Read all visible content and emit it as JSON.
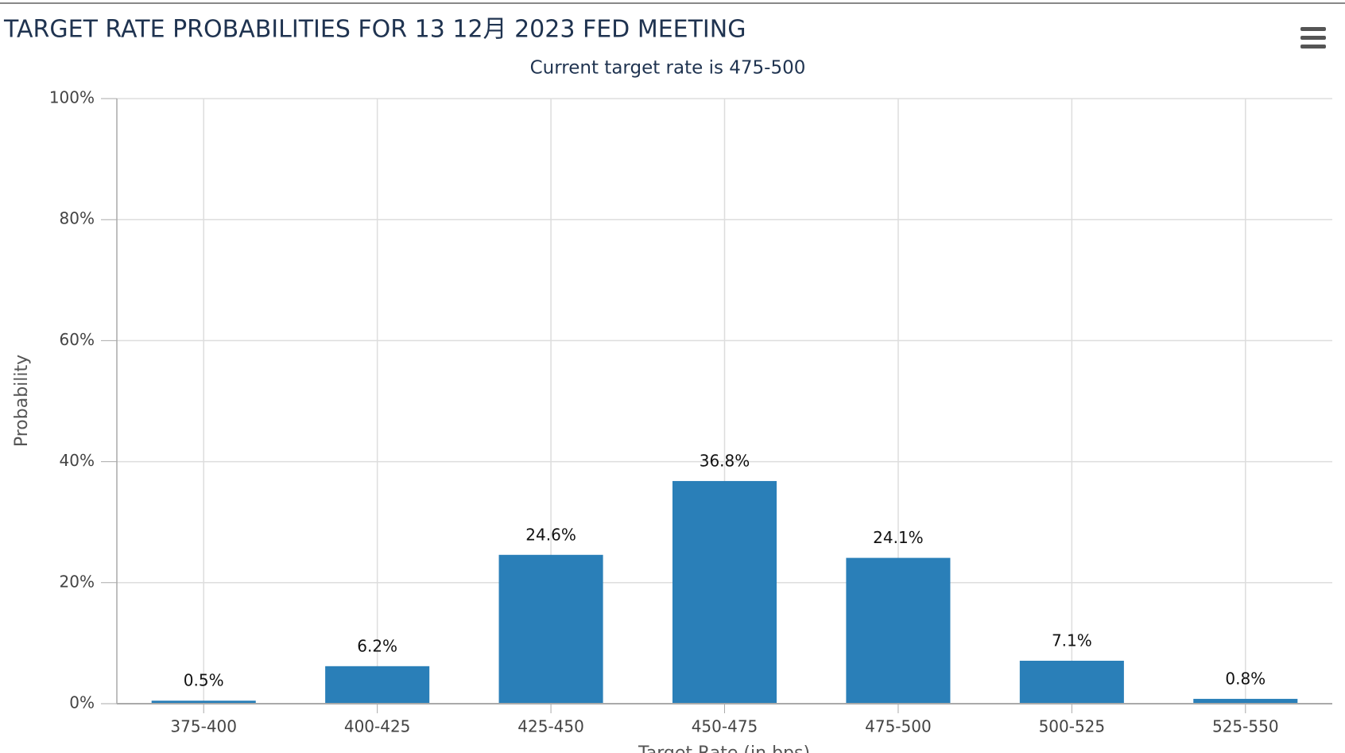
{
  "chart_data": {
    "type": "bar",
    "title": "TARGET RATE PROBABILITIES FOR 13 12月 2023 FED MEETING",
    "subtitle": "Current target rate is 475-500",
    "y_label": "Probability",
    "x_label": "Target Rate (in bps)",
    "categories": [
      "375-400",
      "400-425",
      "425-450",
      "450-475",
      "475-500",
      "500-525",
      "525-550"
    ],
    "values": [
      0.5,
      6.2,
      24.6,
      36.8,
      24.1,
      7.1,
      0.8
    ],
    "value_labels": [
      "0.5%",
      "6.2%",
      "24.6%",
      "36.8%",
      "24.1%",
      "7.1%",
      "0.8%"
    ],
    "color": "#2a7fb8",
    "ylim": [
      0,
      100
    ],
    "yticks": [
      {
        "value": 0,
        "label": "0%"
      },
      {
        "value": 20,
        "label": "20%"
      },
      {
        "value": 40,
        "label": "40%"
      },
      {
        "value": 60,
        "label": "60%"
      },
      {
        "value": 80,
        "label": "80%"
      },
      {
        "value": 100,
        "label": "100%"
      }
    ],
    "grid": true
  }
}
